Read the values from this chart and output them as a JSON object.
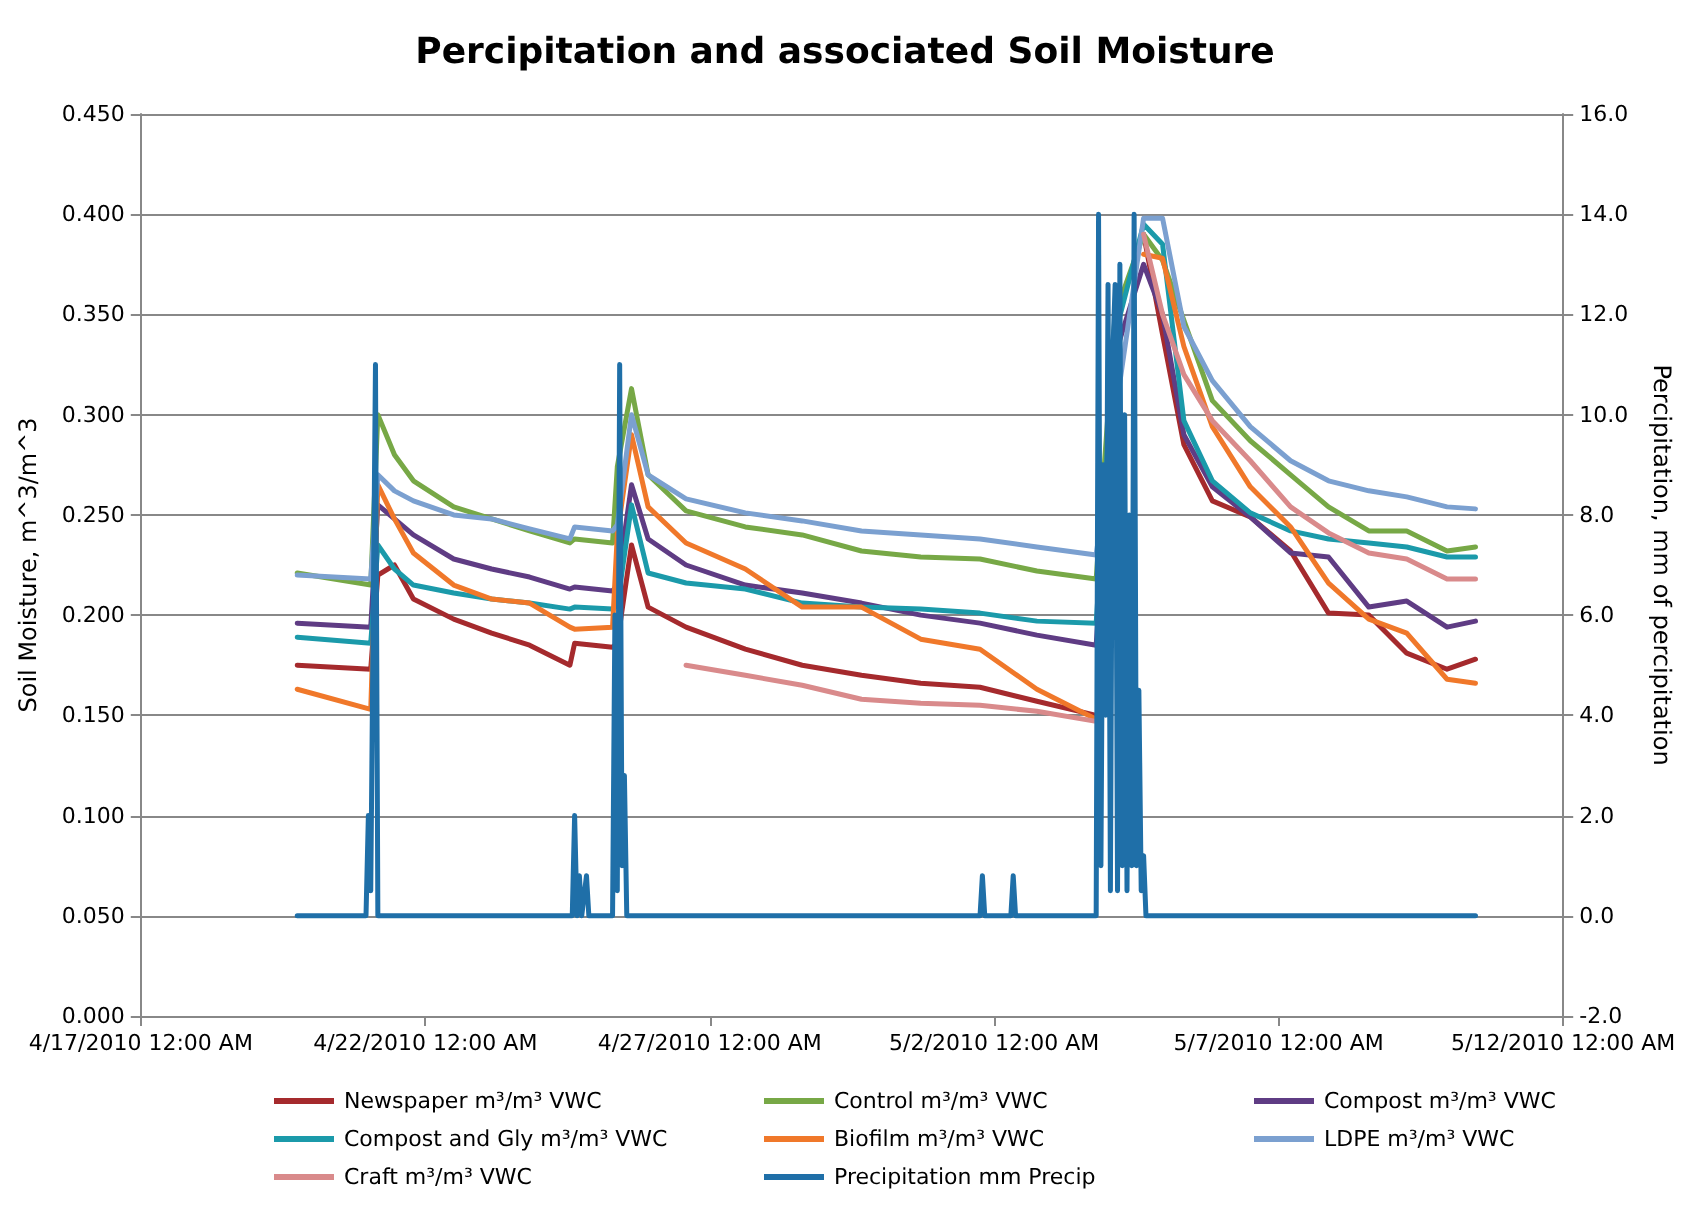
{
  "chart_data": {
    "type": "line",
    "title": "Percipitation and associated Soil Moisture",
    "ylabel": "Soil Moisture, m^3/m^3",
    "y2label": "Percipitation, mm of percipitation",
    "x": [
      "2010-04-19T18:00",
      "2010-04-21T01:00",
      "2010-04-21T04:00",
      "2010-04-21T11:00",
      "2010-04-21T19:00",
      "2010-04-22T12:00",
      "2010-04-23T04:00",
      "2010-04-23T20:00",
      "2010-04-24T13:00",
      "2010-04-24T15:00",
      "2010-04-25T07:00",
      "2010-04-25T09:00",
      "2010-04-25T15:00",
      "2010-04-25T22:00",
      "2010-04-26T14:00",
      "2010-04-27T15:00",
      "2010-04-28T15:00",
      "2010-04-29T16:00",
      "2010-04-30T17:00",
      "2010-05-01T18:00",
      "2010-05-02T18:00",
      "2010-05-03T19:00",
      "2010-05-04T03:00",
      "2010-05-04T15:00",
      "2010-05-04T23:00",
      "2010-05-05T08:00",
      "2010-05-05T20:00",
      "2010-05-06T12:00",
      "2010-05-07T05:00",
      "2010-05-07T21:00",
      "2010-05-08T14:00",
      "2010-05-09T06:00",
      "2010-05-09T23:00",
      "2010-05-10T11:00"
    ],
    "series": [
      {
        "name": "Newspaper m³/m³ VWC",
        "color": "#a52a2d",
        "values": [
          0.175,
          0.173,
          0.22,
          0.225,
          0.208,
          0.198,
          0.191,
          0.185,
          0.175,
          0.186,
          0.184,
          0.186,
          0.235,
          0.204,
          0.194,
          0.183,
          0.175,
          0.17,
          0.166,
          0.164,
          0.157,
          0.15,
          null,
          0.39,
          0.34,
          0.285,
          0.257,
          0.249,
          0.232,
          0.201,
          0.2,
          0.181,
          0.173,
          0.178
        ]
      },
      {
        "name": "Control m³/m³ VWC",
        "color": "#77a846",
        "values": [
          0.221,
          0.215,
          0.3,
          0.28,
          0.267,
          0.254,
          0.248,
          0.242,
          0.236,
          0.238,
          0.236,
          0.274,
          0.313,
          0.27,
          0.252,
          0.244,
          0.24,
          0.232,
          0.229,
          0.228,
          0.222,
          0.218,
          0.35,
          0.39,
          0.377,
          0.347,
          0.307,
          0.287,
          0.27,
          0.254,
          0.242,
          0.242,
          0.232,
          0.234
        ]
      },
      {
        "name": "Compost m³/m³ VWC",
        "color": "#5f3c84",
        "values": [
          0.196,
          0.194,
          0.255,
          0.248,
          0.24,
          0.228,
          0.223,
          0.219,
          0.213,
          0.214,
          0.212,
          0.215,
          0.265,
          0.238,
          0.225,
          0.215,
          0.211,
          0.206,
          0.2,
          0.196,
          0.19,
          0.185,
          0.33,
          0.375,
          0.35,
          0.29,
          0.264,
          0.249,
          0.231,
          0.229,
          0.204,
          0.207,
          0.194,
          0.197
        ]
      },
      {
        "name": "Compost and Gly m³/m³ VWC",
        "color": "#1b9aaa",
        "values": [
          0.189,
          0.186,
          0.235,
          0.223,
          0.215,
          0.211,
          0.208,
          0.206,
          0.203,
          0.204,
          0.203,
          0.205,
          0.255,
          0.221,
          0.216,
          0.213,
          0.206,
          0.204,
          0.203,
          0.201,
          0.197,
          0.196,
          0.34,
          0.395,
          0.385,
          0.297,
          0.267,
          0.251,
          0.242,
          0.238,
          0.236,
          0.234,
          0.229,
          0.229
        ]
      },
      {
        "name": "Biofilm m³/m³ VWC",
        "color": "#f0782a",
        "values": [
          0.163,
          0.153,
          0.265,
          0.248,
          0.231,
          0.215,
          0.208,
          0.206,
          0.194,
          0.193,
          0.194,
          0.24,
          0.29,
          0.254,
          0.236,
          0.223,
          0.204,
          0.204,
          0.188,
          0.183,
          0.163,
          0.148,
          null,
          0.38,
          0.378,
          0.334,
          0.294,
          0.264,
          0.244,
          0.216,
          0.198,
          0.191,
          0.168,
          0.166
        ]
      },
      {
        "name": "LDPE m³/m³ VWC",
        "color": "#7ba0d0",
        "values": [
          0.22,
          0.218,
          0.27,
          0.262,
          0.257,
          0.25,
          0.248,
          0.243,
          0.238,
          0.244,
          0.242,
          0.245,
          0.3,
          0.27,
          0.258,
          0.251,
          0.247,
          0.242,
          0.24,
          0.238,
          0.234,
          0.23,
          0.3,
          0.398,
          0.398,
          0.344,
          0.317,
          0.294,
          0.277,
          0.267,
          0.262,
          0.259,
          0.254,
          0.253
        ]
      },
      {
        "name": "Craft m³/m³ VWC",
        "color": "#d98a8b",
        "values": [
          null,
          null,
          null,
          null,
          null,
          null,
          null,
          null,
          null,
          null,
          null,
          null,
          null,
          null,
          0.175,
          0.17,
          0.165,
          0.158,
          0.156,
          0.155,
          0.152,
          0.147,
          null,
          0.39,
          0.35,
          0.32,
          0.297,
          0.277,
          0.254,
          0.241,
          0.231,
          0.228,
          0.218,
          0.218
        ]
      },
      {
        "name": "Precipitation mm Precip",
        "color": "#1f6fa8",
        "axis": "y2",
        "x": [
          "2010-04-19T18:00",
          "2010-04-20T23:00",
          "2010-04-21T00:00",
          "2010-04-21T01:00",
          "2010-04-21T03:00",
          "2010-04-21T04:00",
          "2010-04-24T14:00",
          "2010-04-24T15:00",
          "2010-04-24T16:00",
          "2010-04-24T17:00",
          "2010-04-24T18:00",
          "2010-04-24T20:00",
          "2010-04-24T21:00",
          "2010-04-25T07:00",
          "2010-04-25T08:00",
          "2010-04-25T09:00",
          "2010-04-25T10:00",
          "2010-04-25T11:00",
          "2010-04-25T12:00",
          "2010-04-25T13:00",
          "2010-05-01T18:00",
          "2010-05-01T19:00",
          "2010-05-01T20:00",
          "2010-05-02T07:00",
          "2010-05-02T08:00",
          "2010-05-02T09:00",
          "2010-05-03T19:00",
          "2010-05-03T20:00",
          "2010-05-03T21:00",
          "2010-05-03T22:00",
          "2010-05-03T23:00",
          "2010-05-04T00:00",
          "2010-05-04T01:00",
          "2010-05-04T02:00",
          "2010-05-04T03:00",
          "2010-05-04T04:00",
          "2010-05-04T05:00",
          "2010-05-04T06:00",
          "2010-05-04T07:00",
          "2010-05-04T08:00",
          "2010-05-04T09:00",
          "2010-05-04T10:00",
          "2010-05-04T11:00",
          "2010-05-04T12:00",
          "2010-05-04T13:00",
          "2010-05-04T14:00",
          "2010-05-04T15:00",
          "2010-05-04T16:00",
          "2010-05-10T11:00"
        ],
        "values": [
          0,
          0,
          2.0,
          0.5,
          11.0,
          0,
          0,
          2.0,
          0,
          0.8,
          0,
          0.8,
          0,
          0,
          6.0,
          0.5,
          11.0,
          1.0,
          2.8,
          0,
          0,
          0.8,
          0,
          0,
          0.8,
          0,
          0,
          14.0,
          1.0,
          9.0,
          4.0,
          12.6,
          0.5,
          11.2,
          12.6,
          0.5,
          13.0,
          1.0,
          10.0,
          0.5,
          8.0,
          1.0,
          14.0,
          1.0,
          4.5,
          0.5,
          1.2,
          0,
          0
        ]
      }
    ],
    "xlim": [
      "2010-04-17",
      "2010-05-12"
    ],
    "xticks": [
      {
        "value": "2010-04-17",
        "label": "4/17/2010 12:00 AM"
      },
      {
        "value": "2010-04-22",
        "label": "4/22/2010 12:00 AM"
      },
      {
        "value": "2010-04-27",
        "label": "4/27/2010 12:00 AM"
      },
      {
        "value": "2010-05-02",
        "label": "5/2/2010 12:00 AM"
      },
      {
        "value": "2010-05-07",
        "label": "5/7/2010 12:00 AM"
      },
      {
        "value": "2010-05-12",
        "label": "5/12/2010 12:00 AM"
      }
    ],
    "ylim": [
      0,
      0.45
    ],
    "yticks": [
      {
        "value": 0,
        "label": "0.000"
      },
      {
        "value": 0.05,
        "label": "0.050"
      },
      {
        "value": 0.1,
        "label": "0.100"
      },
      {
        "value": 0.15,
        "label": "0.150"
      },
      {
        "value": 0.2,
        "label": "0.200"
      },
      {
        "value": 0.25,
        "label": "0.250"
      },
      {
        "value": 0.3,
        "label": "0.300"
      },
      {
        "value": 0.35,
        "label": "0.350"
      },
      {
        "value": 0.4,
        "label": "0.400"
      },
      {
        "value": 0.45,
        "label": "0.450"
      }
    ],
    "y2lim": [
      -2,
      16
    ],
    "y2ticks": [
      {
        "value": -2,
        "label": "-2.0"
      },
      {
        "value": 0,
        "label": "0.0"
      },
      {
        "value": 2,
        "label": "2.0"
      },
      {
        "value": 4,
        "label": "4.0"
      },
      {
        "value": 6,
        "label": "6.0"
      },
      {
        "value": 8,
        "label": "8.0"
      },
      {
        "value": 10,
        "label": "10.0"
      },
      {
        "value": 12,
        "label": "12.0"
      },
      {
        "value": 14,
        "label": "14.0"
      },
      {
        "value": 16,
        "label": "16.0"
      }
    ],
    "grid": "y",
    "legend": "bottom",
    "marker": "none",
    "line_style": "solid"
  }
}
